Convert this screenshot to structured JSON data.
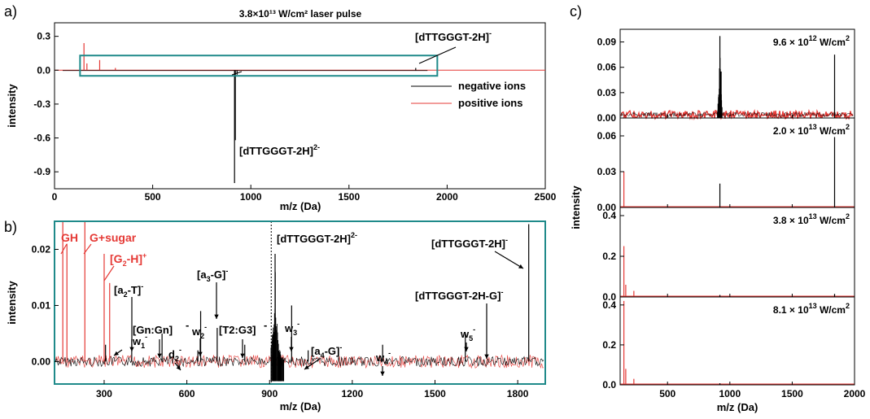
{
  "colors": {
    "negative": "#000000",
    "positive": "#e53935",
    "box": "#1f8a8a",
    "frame_b": "#1f8a8a",
    "axes": "#000000"
  },
  "chart_data": [
    {
      "panel": "a)",
      "type": "line",
      "title": "3.8×10¹³ W/cm² laser pulse",
      "xlabel": "m/z (Da)",
      "ylabel": "intensity",
      "xlim": [
        0,
        2500
      ],
      "ylim": [
        -1.05,
        0.42
      ],
      "xticks": [
        "0",
        "500",
        "1000",
        "1500",
        "2000",
        "2500"
      ],
      "yticks": [
        "0.3",
        "0.0",
        "-0.3",
        "-0.6",
        "-0.9"
      ],
      "series": [
        {
          "name": "negative ions",
          "color": "#000000",
          "peaks": [
            [
              917,
              -1.0
            ],
            [
              921,
              -0.62
            ],
            [
              930,
              -0.04
            ],
            [
              1840,
              0.02
            ]
          ]
        },
        {
          "name": "positive ions",
          "color": "#e53935",
          "peaks": [
            [
              150,
              0.24
            ],
            [
              165,
              0.06
            ],
            [
              230,
              0.09
            ],
            [
              310,
              0.02
            ]
          ]
        }
      ],
      "legend": [
        "negative ions",
        "positive ions"
      ],
      "legend_position": "right",
      "annotations": [
        "[dTTGGGT-2H]⁻",
        "[dTTGGGT-2H]²⁻"
      ],
      "zoom_box_x": [
        130,
        1950
      ],
      "zoom_box_y": [
        -0.05,
        0.13
      ]
    },
    {
      "panel": "b)",
      "type": "line",
      "xlabel": "m/z (Da)",
      "ylabel": "intensity",
      "xlim": [
        120,
        1900
      ],
      "ylim": [
        -0.004,
        0.025
      ],
      "xticks": [
        "300",
        "600",
        "900",
        "1200",
        "1500",
        "1800"
      ],
      "yticks": [
        "0.02",
        "0.01",
        "0.00"
      ],
      "series": [
        {
          "name": "negative ions",
          "color": "#000000",
          "peaks": [
            [
              305,
              0.003
            ],
            [
              400,
              0.004
            ],
            [
              510,
              0.005
            ],
            [
              640,
              0.002
            ],
            [
              650,
              0.009
            ],
            [
              710,
              0.006
            ],
            [
              810,
              0.003
            ],
            [
              920,
              0.0192
            ],
            [
              980,
              0.01
            ],
            [
              1040,
              0.002
            ],
            [
              1310,
              0.003
            ],
            [
              1610,
              0.005
            ],
            [
              1840,
              0.0245
            ]
          ]
        },
        {
          "name": "positive ions",
          "color": "#e53935",
          "peaks": [
            [
              150,
              0.025
            ],
            [
              165,
              0.021
            ],
            [
              230,
              0.025
            ],
            [
              300,
              0.0192
            ],
            [
              320,
              0.014
            ]
          ]
        }
      ],
      "annotations_red": [
        "GH",
        "G+sugar",
        "[G₂-H]⁺"
      ],
      "annotations": [
        "[a₂-T]⁻",
        "[Gn:Gn]⁻",
        "w₁⁻",
        "d₂⁻",
        "w₂⁻",
        "[a₃-G]⁻",
        "[T2:G3]⁻",
        "[dTTGGGT-2H]²⁻",
        "w₃⁻",
        "[a₄-G]⁻",
        "w₄⁻",
        "[dTTGGGT-2H]⁻",
        "[dTTGGGT-2H-G]⁻",
        "w₅⁻"
      ]
    },
    {
      "panel": "c)",
      "type": "line",
      "xlabel": "m/z (Da)",
      "ylabel": "intensity",
      "xlim": [
        120,
        2000
      ],
      "xticks": [
        "500",
        "1000",
        "1500",
        "2000"
      ],
      "subplots": [
        {
          "label": "9.6 × 10¹² W/cm²",
          "ylim": [
            0,
            0.105
          ],
          "yticks": [
            "0.09",
            "0.06",
            "0.03",
            "0.00"
          ],
          "series": [
            {
              "name": "negative ions",
              "peaks": [
                [
                  920,
                  0.097
                ],
                [
                  930,
                  0.055
                ],
                [
                  1840,
                  0.075
                ]
              ]
            },
            {
              "name": "positive ions",
              "peaks": [
                [
                  150,
                  0.005
                ]
              ]
            }
          ]
        },
        {
          "label": "2.0 × 10¹³ W/cm²",
          "ylim": [
            0,
            0.075
          ],
          "yticks": [
            "0.06",
            "0.03",
            "0.00"
          ],
          "series": [
            {
              "name": "negative ions",
              "peaks": [
                [
                  920,
                  0.02
                ],
                [
                  1840,
                  0.059
                ]
              ]
            },
            {
              "name": "positive ions",
              "peaks": [
                [
                  150,
                  0.03
                ]
              ]
            }
          ]
        },
        {
          "label": "3.8 × 10¹³ W/cm²",
          "ylim": [
            0,
            0.44
          ],
          "yticks": [
            "0.4",
            "0.2",
            "0.0"
          ],
          "series": [
            {
              "name": "negative ions",
              "peaks": [
                [
                  920,
                  0.01
                ],
                [
                  1840,
                  0.015
                ]
              ]
            },
            {
              "name": "positive ions",
              "peaks": [
                [
                  150,
                  0.25
                ],
                [
                  165,
                  0.06
                ],
                [
                  230,
                  0.03
                ]
              ]
            }
          ]
        },
        {
          "label": "8.1 × 10¹³ W/cm²",
          "ylim": [
            0,
            0.44
          ],
          "yticks": [
            "0.4",
            "0.2",
            "0.0"
          ],
          "series": [
            {
              "name": "negative ions",
              "peaks": [
                [
                  920,
                  0.008
                ]
              ]
            },
            {
              "name": "positive ions",
              "peaks": [
                [
                  150,
                  0.42
                ],
                [
                  165,
                  0.08
                ],
                [
                  230,
                  0.03
                ]
              ]
            }
          ]
        }
      ]
    }
  ]
}
